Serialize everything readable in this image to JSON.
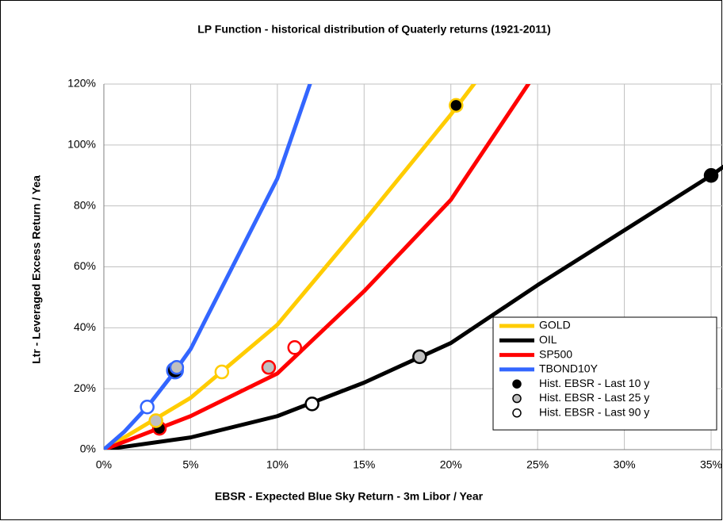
{
  "chart_data": {
    "type": "line",
    "title": "LP Function - historical distribution of Quaterly returns (1921-2011)",
    "x_label": "EBSR - Expected Blue Sky  Return - 3m Libor / Year",
    "y_label": "Ltr - Leveraged Excess Return / Yea",
    "xlim": [
      0,
      35.7
    ],
    "ylim": [
      0,
      120
    ],
    "xticks": [
      {
        "value": 0,
        "label": "0%"
      },
      {
        "value": 5,
        "label": "5%"
      },
      {
        "value": 10,
        "label": "10%"
      },
      {
        "value": 15,
        "label": "15%"
      },
      {
        "value": 20,
        "label": "20%"
      },
      {
        "value": 25,
        "label": "25%"
      },
      {
        "value": 30,
        "label": "30%"
      },
      {
        "value": 35,
        "label": "35%"
      }
    ],
    "yticks": [
      {
        "value": 0,
        "label": "0%"
      },
      {
        "value": 20,
        "label": "20%"
      },
      {
        "value": 40,
        "label": "40%"
      },
      {
        "value": 60,
        "label": "60%"
      },
      {
        "value": 80,
        "label": "80%"
      },
      {
        "value": 100,
        "label": "100%"
      },
      {
        "value": 120,
        "label": "120%"
      }
    ],
    "grid": true,
    "legend": "lower right",
    "series": [
      {
        "name": "GOLD",
        "color": "#ffcc00",
        "x": [
          0,
          5,
          10,
          15,
          20,
          21.6
        ],
        "values": [
          0,
          17,
          41,
          75,
          110,
          122
        ]
      },
      {
        "name": "OIL",
        "color": "#000000",
        "x": [
          0,
          5,
          10,
          15,
          20,
          25,
          30,
          35,
          36
        ],
        "values": [
          0,
          4,
          11,
          22,
          35,
          54,
          72,
          90,
          94
        ]
      },
      {
        "name": "SP500",
        "color": "#ff0000",
        "x": [
          0,
          5,
          10,
          15,
          20,
          24.7
        ],
        "values": [
          0,
          11,
          25,
          52,
          82,
          122
        ]
      },
      {
        "name": "TBOND10Y",
        "color": "#3366ff",
        "x": [
          0,
          1.2,
          2.5,
          4,
          5,
          10,
          12
        ],
        "values": [
          0,
          6,
          14,
          25,
          33,
          89,
          122
        ]
      },
      {
        "name": "Hist. EBSR - Last 10 y",
        "style": "marker",
        "color": "#000000",
        "x": [
          3.2,
          4.1,
          20.3,
          35
        ],
        "values": [
          7,
          26,
          113,
          90
        ],
        "edgecolors": [
          "#ff0000",
          "#3366ff",
          "#ffcc00",
          "#000000"
        ]
      },
      {
        "name": "Hist. EBSR - Last 25 y",
        "style": "marker",
        "color": "#c0c0c0",
        "x": [
          3.0,
          4.2,
          9.5,
          18.2
        ],
        "values": [
          9.5,
          27,
          27,
          30.5
        ],
        "edgecolors": [
          "#ffcc00",
          "#3366ff",
          "#ff0000",
          "#000000"
        ]
      },
      {
        "name": "Hist. EBSR - Last 90 y",
        "style": "marker",
        "color": "#ffffff",
        "x": [
          2.5,
          6.8,
          11,
          12
        ],
        "values": [
          14,
          25.5,
          33.5,
          15
        ],
        "edgecolors": [
          "#3366ff",
          "#ffcc00",
          "#ff0000",
          "#000000"
        ]
      }
    ]
  }
}
